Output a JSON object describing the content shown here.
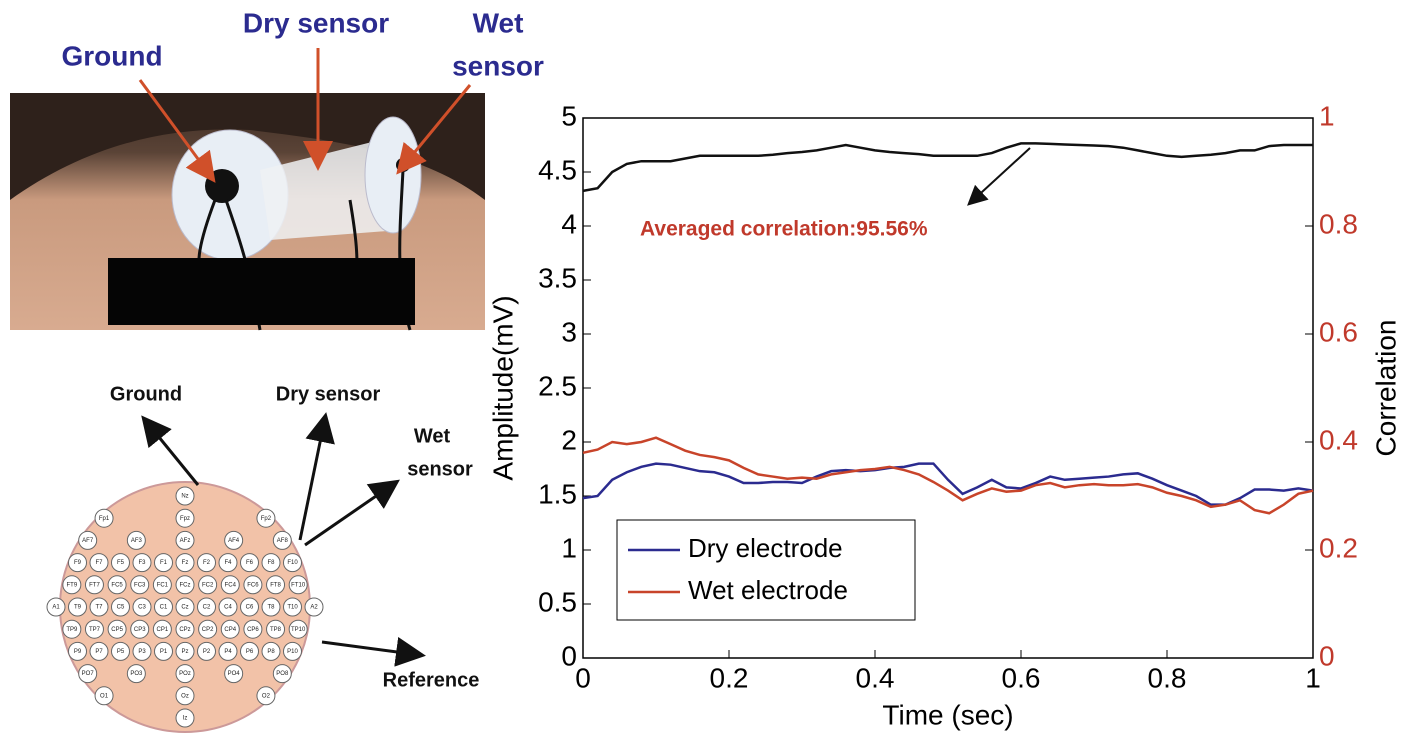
{
  "photo": {
    "labels": {
      "ground": "Ground",
      "dry": "Dry sensor",
      "wet": [
        "Wet",
        "sensor"
      ]
    }
  },
  "diagram": {
    "labels": {
      "ground": "Ground",
      "dry": "Dry sensor",
      "wet": [
        "Wet",
        "sensor"
      ],
      "reference": "Reference"
    },
    "electrode_rows": [
      [
        "Nz"
      ],
      [
        "Fp1",
        "Fpz",
        "Fp2"
      ],
      [
        "AF7",
        "AF3",
        "AFz",
        "AF4",
        "AF8"
      ],
      [
        "F9",
        "F7",
        "F5",
        "F3",
        "F1",
        "Fz",
        "F2",
        "F4",
        "F6",
        "F8",
        "F10"
      ],
      [
        "FT9",
        "FT7",
        "FC5",
        "FC3",
        "FC1",
        "FCz",
        "FC2",
        "FC4",
        "FC6",
        "FT8",
        "FT10"
      ],
      [
        "A1",
        "T9",
        "T7",
        "C5",
        "C3",
        "C1",
        "Cz",
        "C2",
        "C4",
        "C6",
        "T8",
        "T10",
        "A2"
      ],
      [
        "TP9",
        "TP7",
        "CP5",
        "CP3",
        "CP1",
        "CPz",
        "CP2",
        "CP4",
        "CP6",
        "TP8",
        "TP10"
      ],
      [
        "P9",
        "P7",
        "P5",
        "P3",
        "P1",
        "Pz",
        "P2",
        "P4",
        "P6",
        "P8",
        "P10"
      ],
      [
        "PO7",
        "PO3",
        "POz",
        "PO4",
        "PO8"
      ],
      [
        "O1",
        "Oz",
        "O2"
      ],
      [
        "Iz"
      ]
    ]
  },
  "chart_data": {
    "type": "line",
    "xlabel": "Time (sec)",
    "ylabel": "Amplitude(mV)",
    "y2label": "Correlation",
    "annotation": "Averaged correlation:95.56%",
    "xlim": [
      0,
      1
    ],
    "xticks": [
      0,
      0.2,
      0.4,
      0.6,
      0.8,
      1
    ],
    "ylim": [
      0,
      5
    ],
    "yticks": [
      0,
      0.5,
      1,
      1.5,
      2,
      2.5,
      3,
      3.5,
      4,
      4.5,
      5
    ],
    "y2lim": [
      0,
      1
    ],
    "y2ticks": [
      0,
      0.2,
      0.4,
      0.6,
      0.8,
      1
    ],
    "y2color": "#c0392b",
    "grid": false,
    "legend": "lower left",
    "x": [
      0,
      0.02,
      0.04,
      0.06,
      0.08,
      0.1,
      0.12,
      0.14,
      0.16,
      0.18,
      0.2,
      0.22,
      0.24,
      0.26,
      0.28,
      0.3,
      0.32,
      0.34,
      0.36,
      0.38,
      0.4,
      0.42,
      0.44,
      0.46,
      0.48,
      0.5,
      0.52,
      0.54,
      0.56,
      0.58,
      0.6,
      0.62,
      0.64,
      0.66,
      0.68,
      0.7,
      0.72,
      0.74,
      0.76,
      0.78,
      0.8,
      0.82,
      0.84,
      0.86,
      0.88,
      0.9,
      0.92,
      0.94,
      0.96,
      0.98,
      1
    ],
    "series": [
      {
        "name": "Dry electrode",
        "color": "#2b2b8f",
        "values": [
          1.48,
          1.5,
          1.65,
          1.72,
          1.77,
          1.8,
          1.79,
          1.76,
          1.73,
          1.72,
          1.68,
          1.62,
          1.62,
          1.63,
          1.63,
          1.62,
          1.68,
          1.73,
          1.74,
          1.73,
          1.74,
          1.76,
          1.77,
          1.8,
          1.8,
          1.65,
          1.52,
          1.58,
          1.65,
          1.58,
          1.57,
          1.62,
          1.68,
          1.65,
          1.66,
          1.67,
          1.68,
          1.7,
          1.71,
          1.66,
          1.6,
          1.55,
          1.5,
          1.42,
          1.42,
          1.48,
          1.56,
          1.56,
          1.55,
          1.57,
          1.55
        ]
      },
      {
        "name": "Wet electrode",
        "color": "#c8442a",
        "values": [
          1.9,
          1.93,
          2.0,
          1.98,
          2.0,
          2.04,
          1.98,
          1.92,
          1.88,
          1.86,
          1.83,
          1.76,
          1.7,
          1.68,
          1.66,
          1.67,
          1.66,
          1.7,
          1.72,
          1.74,
          1.75,
          1.77,
          1.74,
          1.7,
          1.63,
          1.55,
          1.46,
          1.52,
          1.57,
          1.54,
          1.55,
          1.6,
          1.62,
          1.58,
          1.6,
          1.61,
          1.6,
          1.6,
          1.61,
          1.58,
          1.53,
          1.5,
          1.46,
          1.4,
          1.42,
          1.46,
          1.37,
          1.34,
          1.42,
          1.52,
          1.55
        ]
      },
      {
        "color": "#111111",
        "axis": "y2",
        "values": [
          0.865,
          0.87,
          0.9,
          0.915,
          0.92,
          0.92,
          0.92,
          0.925,
          0.93,
          0.93,
          0.93,
          0.93,
          0.93,
          0.932,
          0.935,
          0.937,
          0.94,
          0.945,
          0.95,
          0.945,
          0.94,
          0.937,
          0.935,
          0.933,
          0.93,
          0.93,
          0.93,
          0.93,
          0.935,
          0.945,
          0.953,
          0.953,
          0.952,
          0.951,
          0.95,
          0.949,
          0.948,
          0.945,
          0.94,
          0.935,
          0.93,
          0.928,
          0.93,
          0.932,
          0.935,
          0.94,
          0.94,
          0.948,
          0.95,
          0.95,
          0.95
        ]
      }
    ]
  }
}
